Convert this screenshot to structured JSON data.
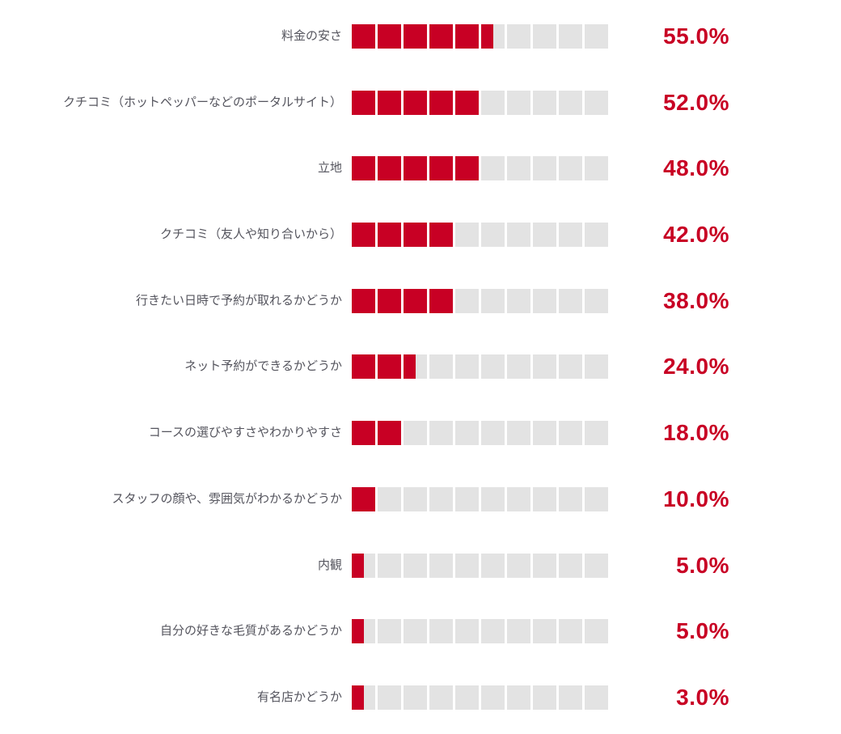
{
  "chart_data": {
    "type": "bar",
    "orientation": "horizontal",
    "title": "",
    "xlabel": "",
    "ylabel": "",
    "unit": "%",
    "xlim": [
      0,
      100
    ],
    "segments_per_bar": 10,
    "percent_per_segment": 10,
    "fill_rounding": "nearest_half_segment",
    "grid": false,
    "legend": false,
    "categories": [
      "料金の安さ",
      "クチコミ（ホットペッパーなどのポータルサイト）",
      "立地",
      "クチコミ（友人や知り合いから）",
      "行きたい日時で予約が取れるかどうか",
      "ネット予約ができるかどうか",
      "コースの選びやすさやわかりやすさ",
      "スタッフの顔や、雰囲気がわかるかどうか",
      "内観",
      "自分の好きな毛質があるかどうか",
      "有名店かどうか"
    ],
    "values": [
      55.0,
      52.0,
      48.0,
      42.0,
      38.0,
      24.0,
      18.0,
      10.0,
      5.0,
      5.0,
      3.0
    ],
    "value_labels": [
      "55.0%",
      "52.0%",
      "48.0%",
      "42.0%",
      "38.0%",
      "24.0%",
      "18.0%",
      "10.0%",
      "5.0%",
      "5.0%",
      "3.0%"
    ],
    "colors": {
      "bar_fill": "#c80024",
      "bar_empty": "#e3e3e3",
      "value_text": "#c80024",
      "label_text": "#55555e",
      "background": "#ffffff"
    }
  }
}
